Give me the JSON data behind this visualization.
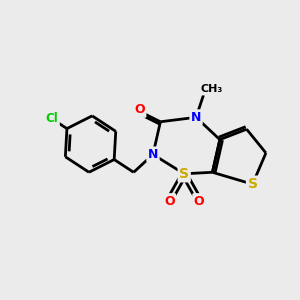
{
  "background_color": "#ebebeb",
  "bond_color": "#000000",
  "bond_width": 2.0,
  "atom_colors": {
    "C": "#000000",
    "N": "#0000ff",
    "O": "#ff0000",
    "S": "#ccaa00",
    "Cl": "#00cc00",
    "H": "#000000"
  },
  "font_size": 9,
  "figsize": [
    3.0,
    3.0
  ],
  "dpi": 100
}
